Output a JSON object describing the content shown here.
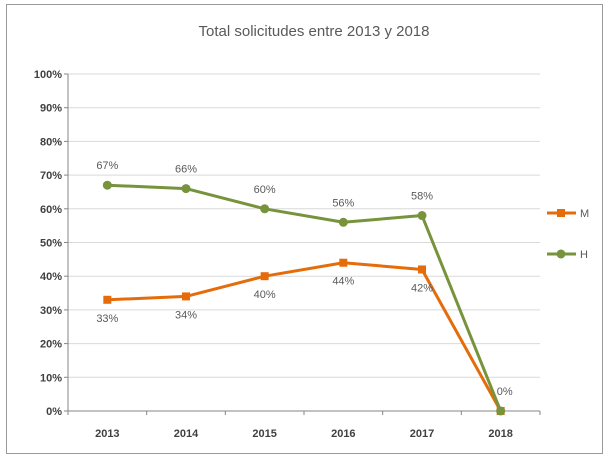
{
  "chart_data": {
    "type": "line",
    "title": "Total solicitudes entre 2013 y 2018",
    "x": [
      "2013",
      "2014",
      "2015",
      "2016",
      "2017",
      "2018"
    ],
    "ylim": [
      0,
      100
    ],
    "yticks": [
      "0%",
      "10%",
      "20%",
      "30%",
      "40%",
      "50%",
      "60%",
      "70%",
      "80%",
      "90%",
      "100%"
    ],
    "grid": true,
    "legend_position": "right",
    "series": [
      {
        "name": "M",
        "color": "#e46c0a",
        "values": [
          33,
          34,
          40,
          44,
          42,
          0
        ],
        "labels": [
          "33%",
          "34%",
          "40%",
          "44%",
          "42%",
          ""
        ]
      },
      {
        "name": "H",
        "color": "#77933c",
        "values": [
          67,
          66,
          60,
          56,
          58,
          0
        ],
        "labels": [
          "67%",
          "66%",
          "60%",
          "56%",
          "58%",
          "0%"
        ]
      }
    ]
  }
}
